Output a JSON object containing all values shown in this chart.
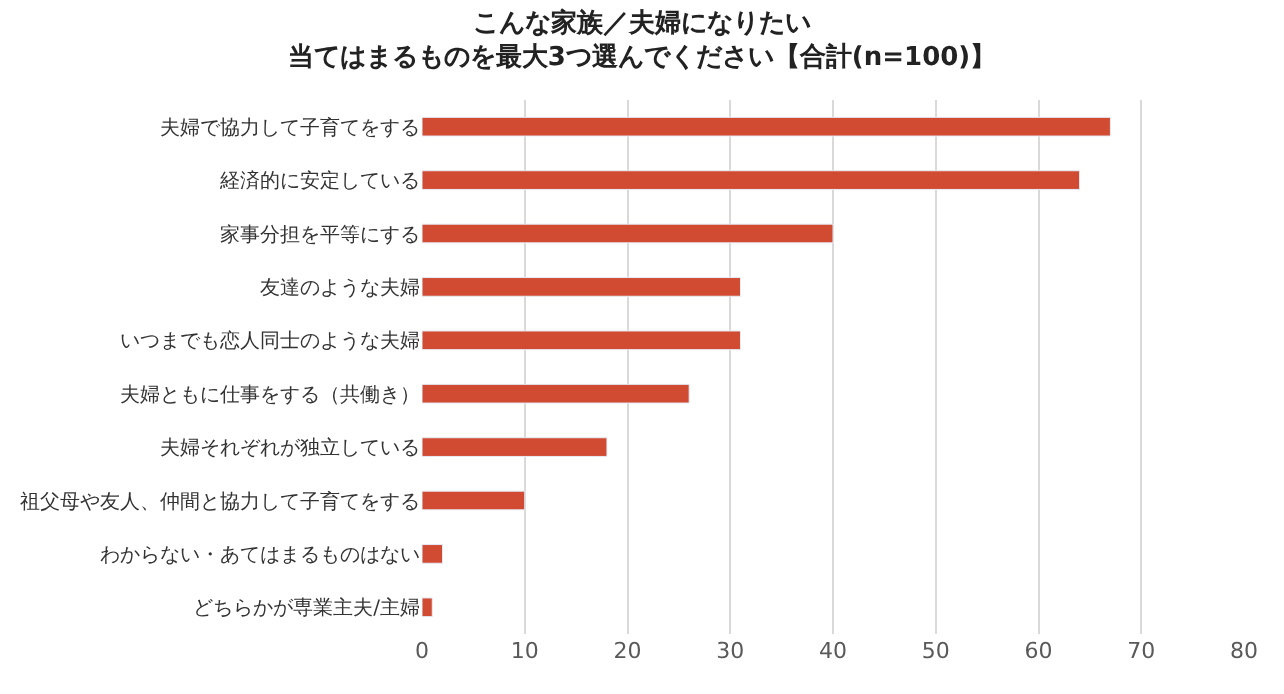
{
  "chart_data": {
    "type": "bar",
    "orientation": "horizontal",
    "title": "こんな家族／夫婦になりたい",
    "subtitle": "当てはまるものを最大3つ選んでください【合計(n=100)】",
    "categories": [
      "夫婦で協力して子育てをする",
      "経済的に安定している",
      "家事分担を平等にする",
      "友達のような夫婦",
      "いつまでも恋人同士のような夫婦",
      "夫婦ともに仕事をする（共働き）",
      "夫婦それぞれが独立している",
      "祖父母や友人、仲間と協力して子育てをする",
      "わからない・あてはまるものはない",
      "どちらかが専業主夫/主婦"
    ],
    "values": [
      67,
      64,
      40,
      31,
      31,
      26,
      18,
      10,
      2,
      1
    ],
    "color": "#d14b32",
    "xlim": [
      0,
      80
    ],
    "xticks": [
      0,
      10,
      20,
      30,
      40,
      50,
      60,
      70,
      80
    ],
    "grid": "x",
    "legend": false
  }
}
